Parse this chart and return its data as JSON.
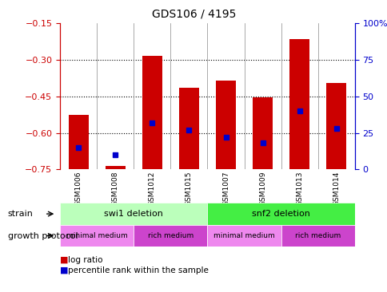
{
  "title": "GDS106 / 4195",
  "samples": [
    "GSM1006",
    "GSM1008",
    "GSM1012",
    "GSM1015",
    "GSM1007",
    "GSM1009",
    "GSM1013",
    "GSM1014"
  ],
  "log_ratios": [
    -0.525,
    -0.735,
    -0.285,
    -0.415,
    -0.385,
    -0.455,
    -0.215,
    -0.395
  ],
  "percentile_ranks": [
    15,
    10,
    32,
    27,
    22,
    18,
    40,
    28
  ],
  "ylim_left": [
    -0.75,
    -0.15
  ],
  "ylim_right": [
    0,
    100
  ],
  "left_ticks": [
    -0.75,
    -0.6,
    -0.45,
    -0.3,
    -0.15
  ],
  "right_ticks": [
    0,
    25,
    50,
    75,
    100
  ],
  "bar_color": "#cc0000",
  "marker_color": "#0000cc",
  "strain_labels": [
    "swi1 deletion",
    "snf2 deletion"
  ],
  "strain_color_light": "#bbffbb",
  "strain_color_dark": "#44ee44",
  "growth_labels": [
    "minimal medium",
    "rich medium",
    "minimal medium",
    "rich medium"
  ],
  "growth_color_light": "#ee88ee",
  "growth_color_dark": "#cc44cc",
  "bg_color": "#ffffff",
  "plot_bg": "#ffffff",
  "tick_label_color_left": "#cc0000",
  "tick_label_color_right": "#0000cc",
  "xtick_bg": "#cccccc"
}
